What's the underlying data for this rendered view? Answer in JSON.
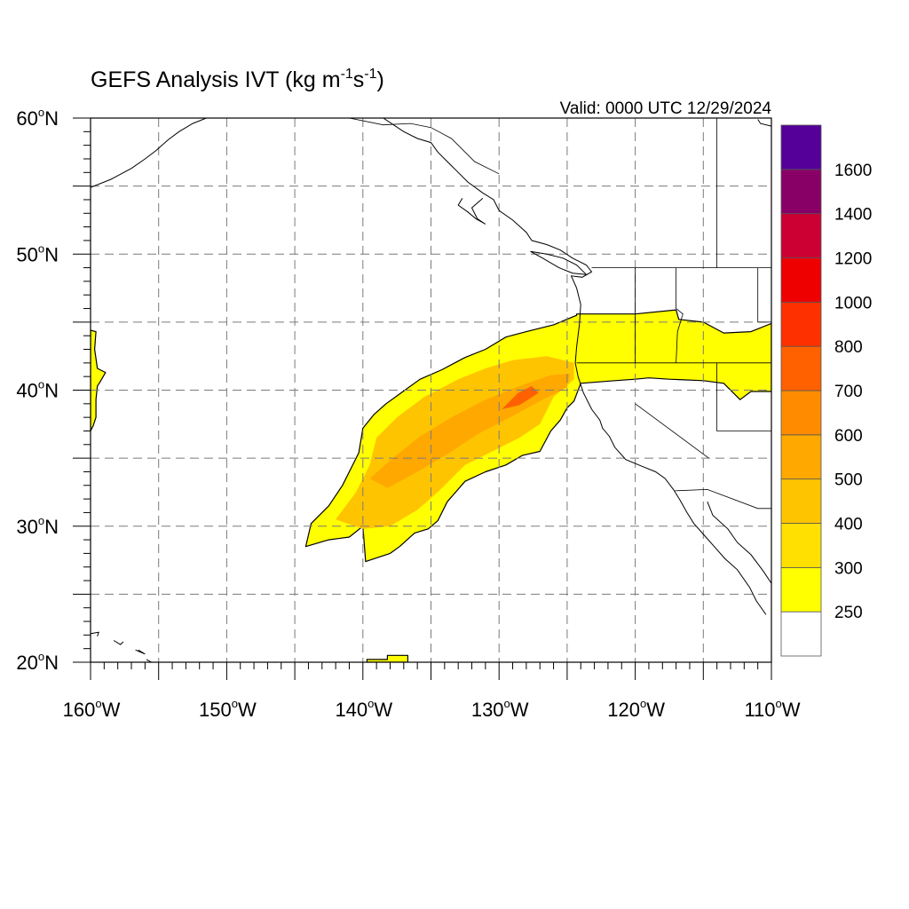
{
  "header": {
    "title": "GEFS Analysis IVT (kg m",
    "title_sup1": "-1",
    "title_mid": "s",
    "title_sup2": "-1",
    "title_end": ")",
    "valid": "Valid: 0000 UTC 12/29/2024"
  },
  "axes": {
    "lat_labels": [
      {
        "lat": 60,
        "text": "60"
      },
      {
        "lat": 50,
        "text": "50"
      },
      {
        "lat": 40,
        "text": "40"
      },
      {
        "lat": 30,
        "text": "30"
      },
      {
        "lat": 20,
        "text": "20"
      }
    ],
    "lat_suffix": "N",
    "lon_labels": [
      {
        "lon": -160,
        "text": "160"
      },
      {
        "lon": -150,
        "text": "150"
      },
      {
        "lon": -140,
        "text": "140"
      },
      {
        "lon": -130,
        "text": "130"
      },
      {
        "lon": -120,
        "text": "120"
      },
      {
        "lon": -110,
        "text": "110"
      }
    ],
    "lon_suffix": "W",
    "degree_symbol": "o",
    "lon_range": [
      -160,
      -110
    ],
    "lat_range": [
      20,
      60
    ],
    "grid": true,
    "grid_step_deg": 5
  },
  "colorbar": {
    "levels": [
      250,
      300,
      400,
      500,
      600,
      700,
      800,
      1000,
      1200,
      1400,
      1600
    ],
    "labels": [
      "250",
      "300",
      "400",
      "500",
      "600",
      "700",
      "800",
      "1000",
      "1200",
      "1400",
      "1600"
    ],
    "colors": [
      "#ffffff",
      "#ffff00",
      "#ffe000",
      "#ffc400",
      "#ffa800",
      "#ff8c00",
      "#ff6000",
      "#ff3000",
      "#ee0000",
      "#cc0033",
      "#880066",
      "#550099"
    ]
  },
  "chart_data": {
    "type": "heatmap",
    "variable": "IVT",
    "units": "kg m-1 s-1",
    "valid": "0000 UTC 12/29/2024",
    "region": {
      "lon": [
        -160,
        -110
      ],
      "lat": [
        20,
        60
      ]
    },
    "features": [
      {
        "kind": "atmospheric-river",
        "threshold": 250,
        "outline": [
          [
            -144.2,
            28.5
          ],
          [
            -143.8,
            30.2
          ],
          [
            -142.5,
            31.5
          ],
          [
            -141.5,
            33
          ],
          [
            -140.3,
            35.4
          ],
          [
            -140,
            37.2
          ],
          [
            -139.2,
            38.2
          ],
          [
            -138.3,
            39
          ],
          [
            -137.2,
            39.8
          ],
          [
            -135.8,
            40.8
          ],
          [
            -134.2,
            41.5
          ],
          [
            -132.5,
            42.4
          ],
          [
            -131,
            43
          ],
          [
            -129.5,
            43.9
          ],
          [
            -128,
            44.3
          ],
          [
            -126,
            44.8
          ],
          [
            -124.3,
            45.5
          ],
          [
            -124.3,
            45.6
          ],
          [
            -120,
            45.6
          ],
          [
            -117,
            45.9
          ],
          [
            -116.8,
            45.2
          ],
          [
            -115,
            45
          ],
          [
            -113.5,
            44.2
          ],
          [
            -111.5,
            44.3
          ],
          [
            -110,
            44.9
          ],
          [
            -110,
            39.9
          ],
          [
            -111.5,
            39.9
          ],
          [
            -112.3,
            39.3
          ],
          [
            -113.5,
            40.5
          ],
          [
            -115,
            40.7
          ],
          [
            -117.5,
            40.8
          ],
          [
            -119,
            40.9
          ],
          [
            -120,
            40.8
          ],
          [
            -121.5,
            40.7
          ],
          [
            -124,
            40.5
          ],
          [
            -124.5,
            39.2
          ],
          [
            -125,
            38.7
          ],
          [
            -125.5,
            37.8
          ],
          [
            -126.2,
            37
          ],
          [
            -127,
            35.5
          ],
          [
            -128.3,
            35.2
          ],
          [
            -129.5,
            34.5
          ],
          [
            -131,
            34
          ],
          [
            -132.5,
            33.3
          ],
          [
            -133.8,
            31.8
          ],
          [
            -134.5,
            30.4
          ],
          [
            -135.2,
            29.8
          ],
          [
            -136.2,
            29.5
          ],
          [
            -137.3,
            28.5
          ],
          [
            -138,
            28
          ],
          [
            -139.8,
            27.4
          ],
          [
            -140,
            30
          ],
          [
            -141,
            29.2
          ],
          [
            -142.5,
            29
          ],
          [
            -144.2,
            28.5
          ]
        ]
      },
      {
        "kind": "atmospheric-river-core",
        "threshold": 400,
        "outline": [
          [
            -142,
            30.5
          ],
          [
            -140.5,
            32.5
          ],
          [
            -139.5,
            34.5
          ],
          [
            -139,
            36.5
          ],
          [
            -137.5,
            38
          ],
          [
            -135.5,
            39.5
          ],
          [
            -133,
            40.8
          ],
          [
            -131,
            41.6
          ],
          [
            -129,
            42.2
          ],
          [
            -126.5,
            42.5
          ],
          [
            -124.5,
            42
          ],
          [
            -124.5,
            40.8
          ],
          [
            -126,
            39.5
          ],
          [
            -127,
            37.5
          ],
          [
            -128.5,
            36.5
          ],
          [
            -130.5,
            35.5
          ],
          [
            -132.5,
            34.5
          ],
          [
            -134.5,
            32.5
          ],
          [
            -136,
            31.2
          ],
          [
            -138,
            30
          ],
          [
            -140,
            29.8
          ],
          [
            -142,
            30.5
          ]
        ]
      },
      {
        "kind": "atmospheric-river-max",
        "threshold": 500,
        "outline": [
          [
            -139.5,
            33.5
          ],
          [
            -137.8,
            35
          ],
          [
            -135.8,
            36.6
          ],
          [
            -133.5,
            38
          ],
          [
            -131,
            39.3
          ],
          [
            -128.5,
            40.3
          ],
          [
            -126.2,
            41.1
          ],
          [
            -124.8,
            41.2
          ],
          [
            -125,
            40.2
          ],
          [
            -126.8,
            39.3
          ],
          [
            -129,
            38.1
          ],
          [
            -131.5,
            36.8
          ],
          [
            -133.8,
            35.3
          ],
          [
            -136,
            34
          ],
          [
            -138.2,
            32.8
          ],
          [
            -139.5,
            33.5
          ]
        ]
      },
      {
        "kind": "atmospheric-river-peak",
        "threshold": 700,
        "outline": [
          [
            -129.8,
            38.6
          ],
          [
            -128.6,
            39.8
          ],
          [
            -127.6,
            40.3
          ],
          [
            -127.1,
            39.8
          ],
          [
            -128.5,
            38.9
          ],
          [
            -129.8,
            38.6
          ]
        ]
      },
      {
        "kind": "west-edge-patch",
        "threshold": 250,
        "outline": [
          [
            -160,
            37
          ],
          [
            -159.8,
            37.4
          ],
          [
            -159.6,
            38
          ],
          [
            -159.6,
            39.3
          ],
          [
            -159.5,
            40.3
          ],
          [
            -159.3,
            40.6
          ],
          [
            -158.9,
            41.3
          ],
          [
            -159.5,
            41.6
          ],
          [
            -159.7,
            43
          ],
          [
            -159.6,
            44.3
          ],
          [
            -160,
            44.4
          ]
        ]
      },
      {
        "kind": "small-patch",
        "threshold": 250,
        "outline": [
          [
            -139.7,
            20.2
          ],
          [
            -138.2,
            20.2
          ],
          [
            -138.2,
            20.5
          ],
          [
            -136.7,
            20.5
          ],
          [
            -136.7,
            20.0
          ],
          [
            -139.7,
            20.0
          ]
        ]
      }
    ]
  }
}
